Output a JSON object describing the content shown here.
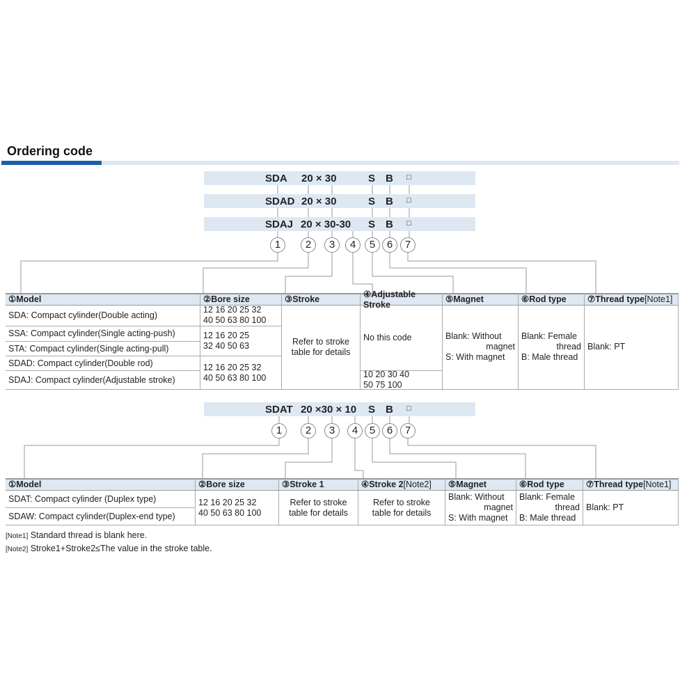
{
  "title": "Ordering code",
  "codes_top": [
    {
      "model": "SDA",
      "size": "20 × 30",
      "s": "S",
      "b": "B",
      "box": "□"
    },
    {
      "model": "SDAD",
      "size": "20 × 30",
      "s": "S",
      "b": "B",
      "box": "□"
    },
    {
      "model": "SDAJ",
      "size": "20 × 30-30",
      "s": "S",
      "b": "B",
      "box": "□"
    }
  ],
  "code_bottom": {
    "model": "SDAT",
    "size": "20 ×30 × 10",
    "s": "S",
    "b": "B",
    "box": "□"
  },
  "circles": [
    "1",
    "2",
    "3",
    "4",
    "5",
    "6",
    "7"
  ],
  "table1": {
    "headers": [
      "①Model",
      "②Bore size",
      "③Stroke",
      "④Adjustable Stroke",
      "⑤Magnet",
      "⑥Rod type",
      "⑦Thread type"
    ],
    "note_tag": "[Note1]",
    "models": [
      "SDA: Compact cylinder(Double acting)",
      "SSA: Compact cylinder(Single acting-push)",
      "STA: Compact cylinder(Single acting-pull)",
      "SDAD: Compact cylinder(Double rod)",
      "SDAJ: Compact cylinder(Adjustable stroke)"
    ],
    "bores": [
      "12 16  20  25  32\n40 50  63  80 100",
      "12 16  20  25\n32  40 50  63",
      "12 16  20  25  32\n40 50  63  80 100"
    ],
    "stroke": "Refer to stroke\ntable for details",
    "adjustable": [
      "No this code",
      "10 20 30 40\n50 75 100"
    ],
    "magnet": "Blank: Without\nmagnet\nS: With magnet",
    "rod": "Blank: Female\nthread\nB: Male thread",
    "thread": "Blank: PT"
  },
  "table2": {
    "headers": [
      "①Model",
      "②Bore size",
      "③Stroke 1",
      "④Stroke 2",
      "⑤Magnet",
      "⑥Rod type",
      "⑦Thread type"
    ],
    "note2_tag": "[Note2]",
    "note1_tag": "[Note1]",
    "models": [
      "SDAT: Compact cylinder (Duplex type)",
      "SDAW: Compact cylinder(Duplex-end type)"
    ],
    "bore": "12 16  20  25  32\n40 50  63  80 100",
    "stroke1": "Refer to stroke\ntable for details",
    "stroke2": "Refer to stroke\ntable for details",
    "magnet": "Blank: Without\nmagnet\nS: With magnet",
    "rod": "Blank: Female\nthread\nB: Male thread",
    "thread": "Blank: PT"
  },
  "notes": [
    {
      "tag": "[Note1]",
      "text": " Standard thread is blank here."
    },
    {
      "tag": "[Note2]",
      "text": " Stroke1+Stroke2≤The value in the stroke table."
    }
  ],
  "colors": {
    "accent": "#1d5fa8",
    "header_bg": "#dde8f3"
  }
}
